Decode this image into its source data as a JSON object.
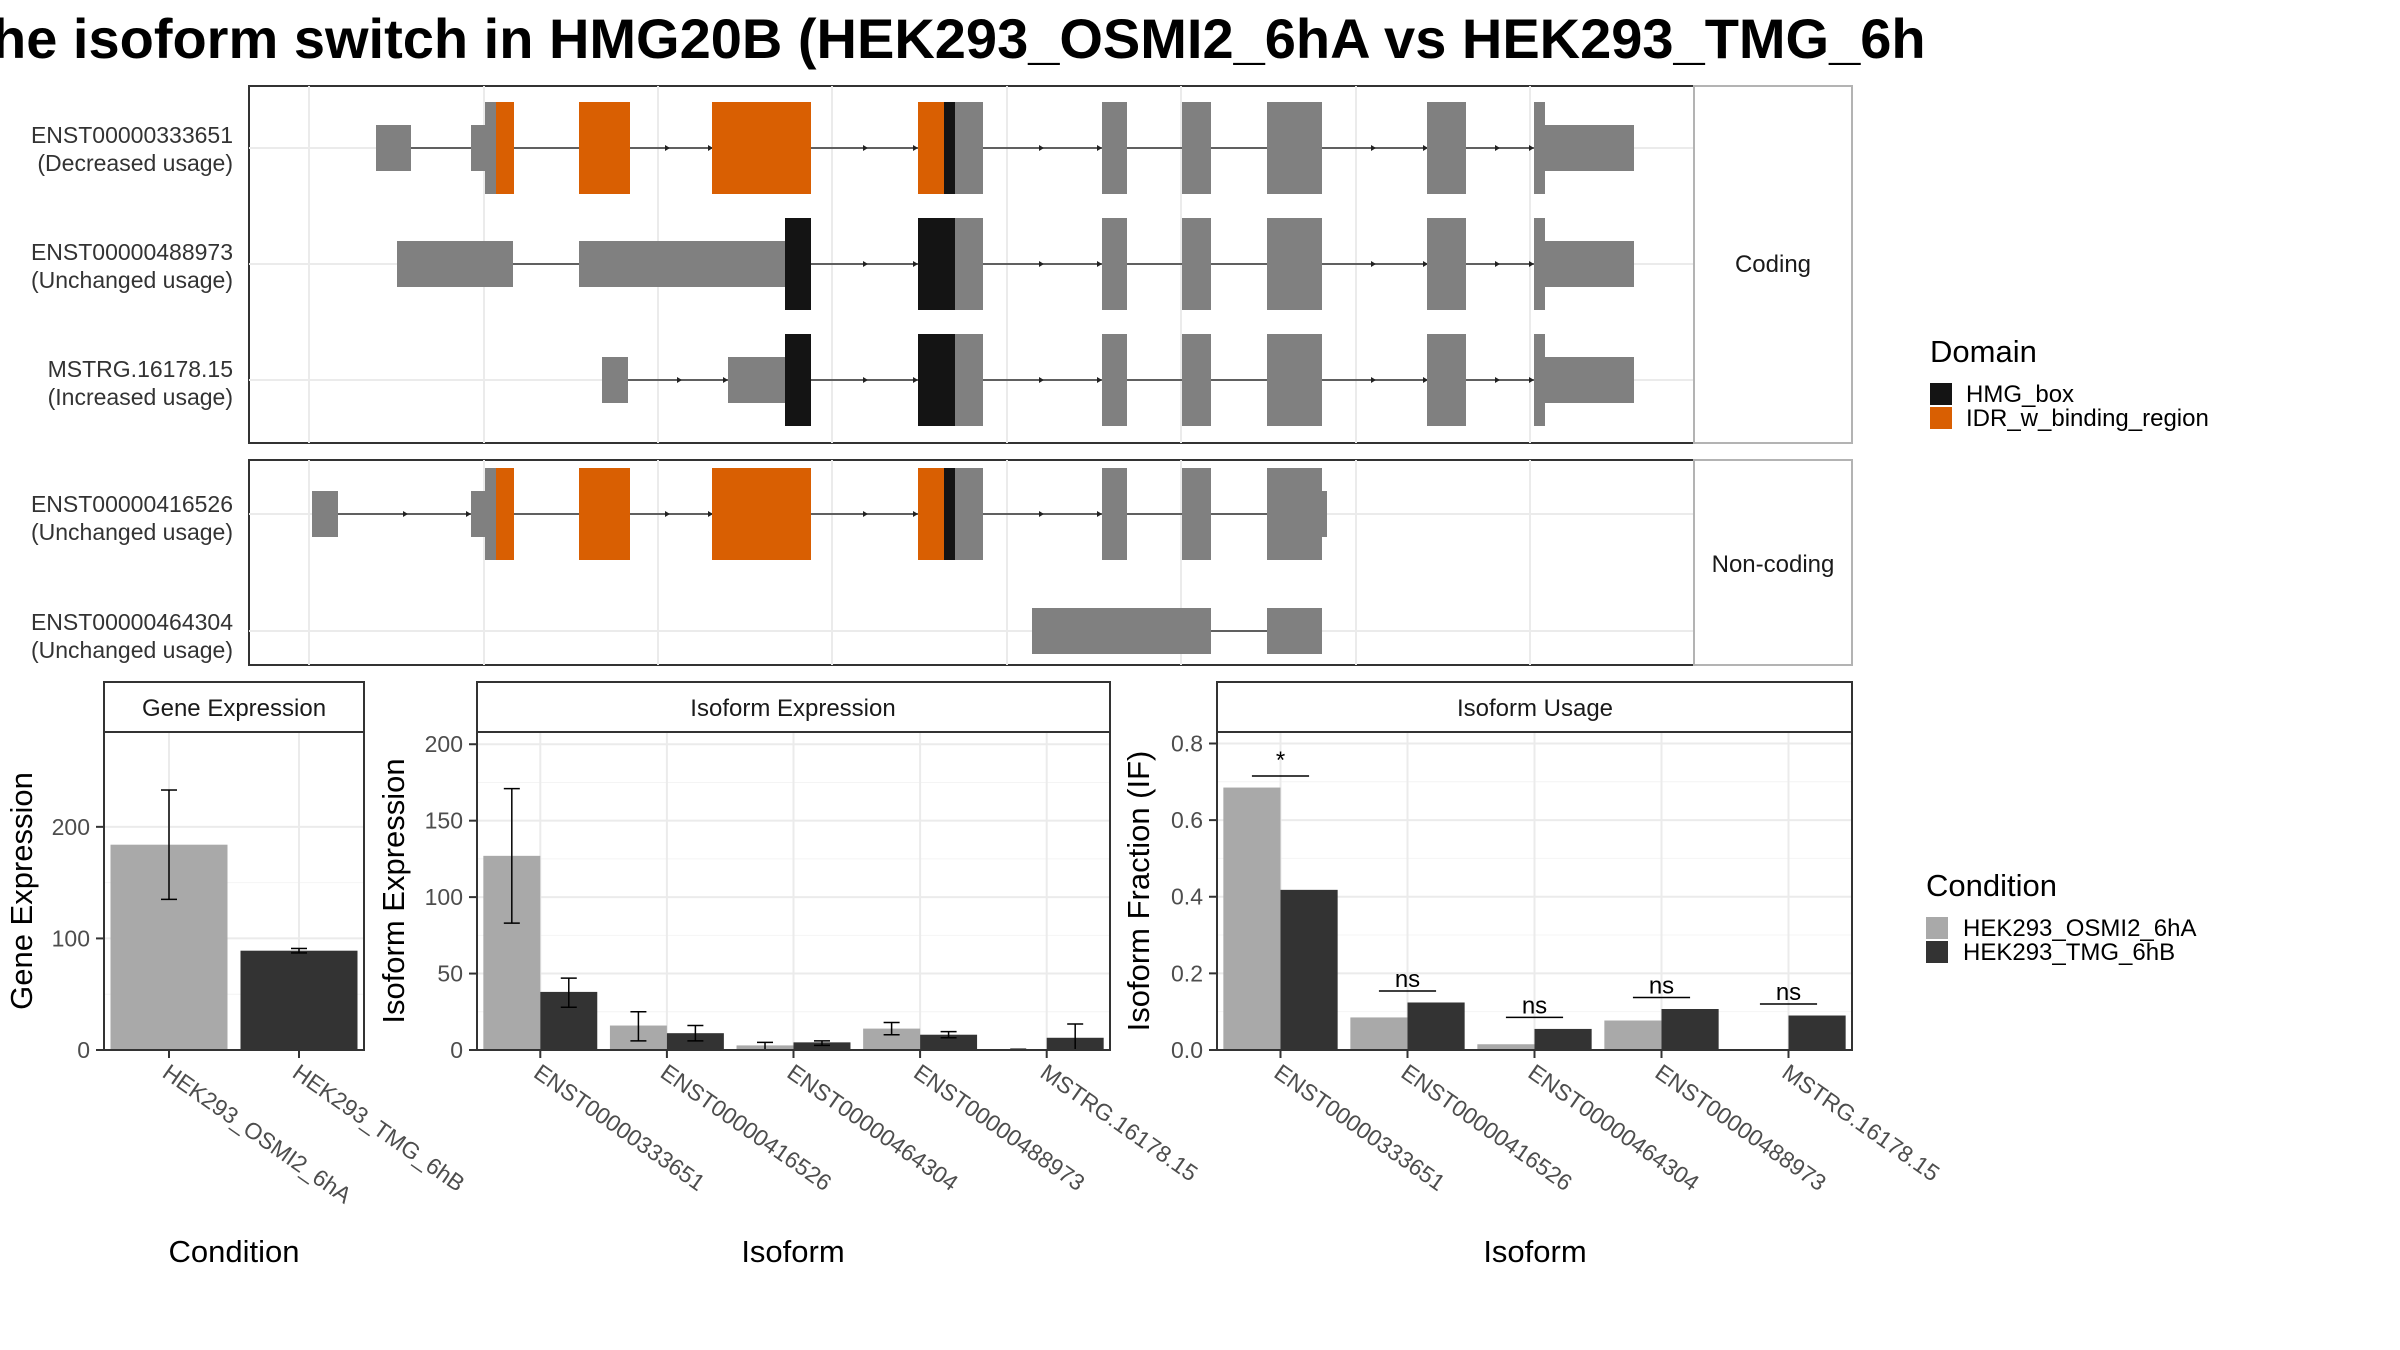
{
  "title": "he isoform switch in HMG20B (HEK293_OSMI2_6hA vs HEK293_TMG_6h",
  "colors": {
    "exon": "#808080",
    "HMG_box": "#141414",
    "IDR_w_binding_region": "#D95F02",
    "cond1": "#A9A9A9",
    "cond2": "#333333"
  },
  "structure": {
    "panels": [
      {
        "strip": "Coding",
        "transcripts": [
          {
            "id": "ENST00000333651",
            "usage": "(Decreased usage)"
          },
          {
            "id": "ENST00000488973",
            "usage": "(Unchanged usage)"
          },
          {
            "id": "MSTRG.16178.15",
            "usage": "(Increased usage)"
          }
        ]
      },
      {
        "strip": "Non-coding",
        "transcripts": [
          {
            "id": "ENST00000416526",
            "usage": "(Unchanged usage)"
          },
          {
            "id": "ENST00000464304",
            "usage": "(Unchanged usage)"
          }
        ]
      }
    ]
  },
  "legend_domain": {
    "title": "Domain",
    "items": [
      {
        "label": "HMG_box",
        "color": "#141414"
      },
      {
        "label": "IDR_w_binding_region",
        "color": "#D95F02"
      }
    ]
  },
  "legend_condition": {
    "title": "Condition",
    "items": [
      {
        "label": "HEK293_OSMI2_6hA",
        "color": "#A9A9A9"
      },
      {
        "label": "HEK293_TMG_6hB",
        "color": "#333333"
      }
    ]
  },
  "chart_data": [
    {
      "type": "bar",
      "title": "Gene Expression",
      "xlabel": "Condition",
      "ylabel": "Gene Expression",
      "ylim": [
        0,
        285
      ],
      "yticks": [
        0,
        100,
        200
      ],
      "categories": [
        "HEK293_OSMI2_6hA",
        "HEK293_TMG_6hB"
      ],
      "values": [
        184,
        89
      ],
      "errors": [
        [
          135,
          233
        ],
        [
          87,
          91
        ]
      ]
    },
    {
      "type": "bar",
      "title": "Isoform Expression",
      "xlabel": "Isoform",
      "ylabel": "Isoform Expression",
      "ylim": [
        0,
        208
      ],
      "yticks": [
        0,
        50,
        100,
        150,
        200
      ],
      "categories": [
        "ENST00000333651",
        "ENST00000416526",
        "ENST00000464304",
        "ENST00000488973",
        "MSTRG.16178.15"
      ],
      "series": [
        {
          "name": "HEK293_OSMI2_6hA",
          "values": [
            127,
            16,
            3,
            14,
            0.3
          ],
          "errors": [
            [
              83,
              171
            ],
            [
              6,
              25
            ],
            [
              0,
              5
            ],
            [
              10,
              18
            ],
            [
              0,
              0.5
            ]
          ]
        },
        {
          "name": "HEK293_TMG_6hB",
          "values": [
            38,
            11,
            5,
            10,
            8
          ],
          "errors": [
            [
              28,
              47
            ],
            [
              6,
              16
            ],
            [
              3,
              6
            ],
            [
              8,
              12
            ],
            [
              0,
              17
            ]
          ]
        }
      ]
    },
    {
      "type": "bar",
      "title": "Isoform Usage",
      "xlabel": "Isoform",
      "ylabel": "Isoform Fraction (IF)",
      "ylim": [
        0,
        0.83
      ],
      "yticks": [
        "0.0",
        "0.2",
        "0.4",
        "0.6",
        "0.8"
      ],
      "categories": [
        "ENST00000333651",
        "ENST00000416526",
        "ENST00000464304",
        "ENST00000488973",
        "MSTRG.16178.15"
      ],
      "series": [
        {
          "name": "HEK293_OSMI2_6hA",
          "values": [
            0.685,
            0.085,
            0.015,
            0.077,
            0.0
          ]
        },
        {
          "name": "HEK293_TMG_6hB",
          "values": [
            0.418,
            0.124,
            0.055,
            0.107,
            0.09
          ]
        }
      ],
      "significance": [
        "*",
        "ns",
        "ns",
        "ns",
        "ns"
      ]
    }
  ]
}
